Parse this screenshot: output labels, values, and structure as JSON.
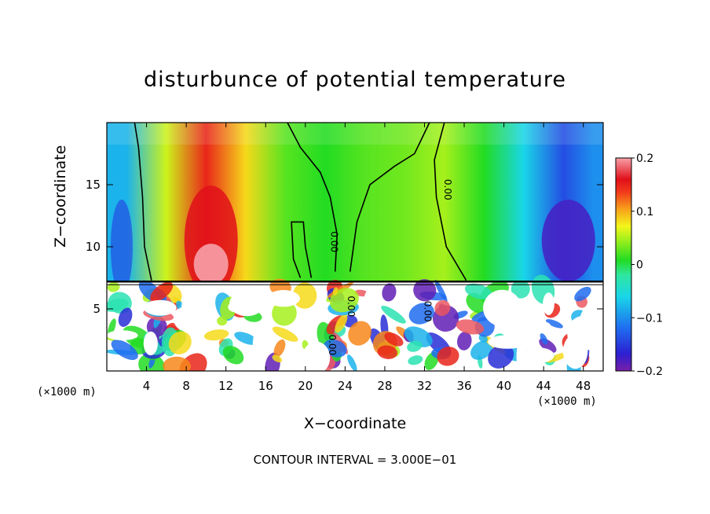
{
  "chart_data": {
    "type": "heatmap",
    "title": "disturbunce of potential temperature",
    "xlabel": "X−coordinate",
    "ylabel": "Z−coordinate",
    "x_unit_label": "(×1000 m)",
    "x_ticks": [
      4,
      8,
      12,
      16,
      20,
      24,
      28,
      32,
      36,
      40,
      44,
      48
    ],
    "y_ticks": [
      5,
      10,
      15
    ],
    "xlim": [
      0,
      50
    ],
    "ylim": [
      0,
      20
    ],
    "colorbar": {
      "ticks": [
        "0.2",
        "0.1",
        "0",
        "−0.1",
        "−0.2"
      ],
      "range": [
        -0.2,
        0.2
      ]
    },
    "contour_labels": [
      "0.00",
      "0.00",
      "0.00",
      "0.00",
      "0.00",
      "0.00",
      "0.00"
    ],
    "footer": "CONTOUR INTERVAL = 3.000E−01",
    "upper_field": [
      {
        "x": 2,
        "v": -0.08
      },
      {
        "x": 6,
        "v": 0.06
      },
      {
        "x": 10,
        "v": 0.15
      },
      {
        "x": 14,
        "v": 0.08
      },
      {
        "x": 18,
        "v": 0.02
      },
      {
        "x": 22,
        "v": 0.0
      },
      {
        "x": 26,
        "v": 0.02
      },
      {
        "x": 30,
        "v": 0.03
      },
      {
        "x": 34,
        "v": 0.05
      },
      {
        "x": 38,
        "v": 0.0
      },
      {
        "x": 42,
        "v": -0.06
      },
      {
        "x": 46,
        "v": -0.14
      },
      {
        "x": 49,
        "v": -0.1
      }
    ]
  }
}
